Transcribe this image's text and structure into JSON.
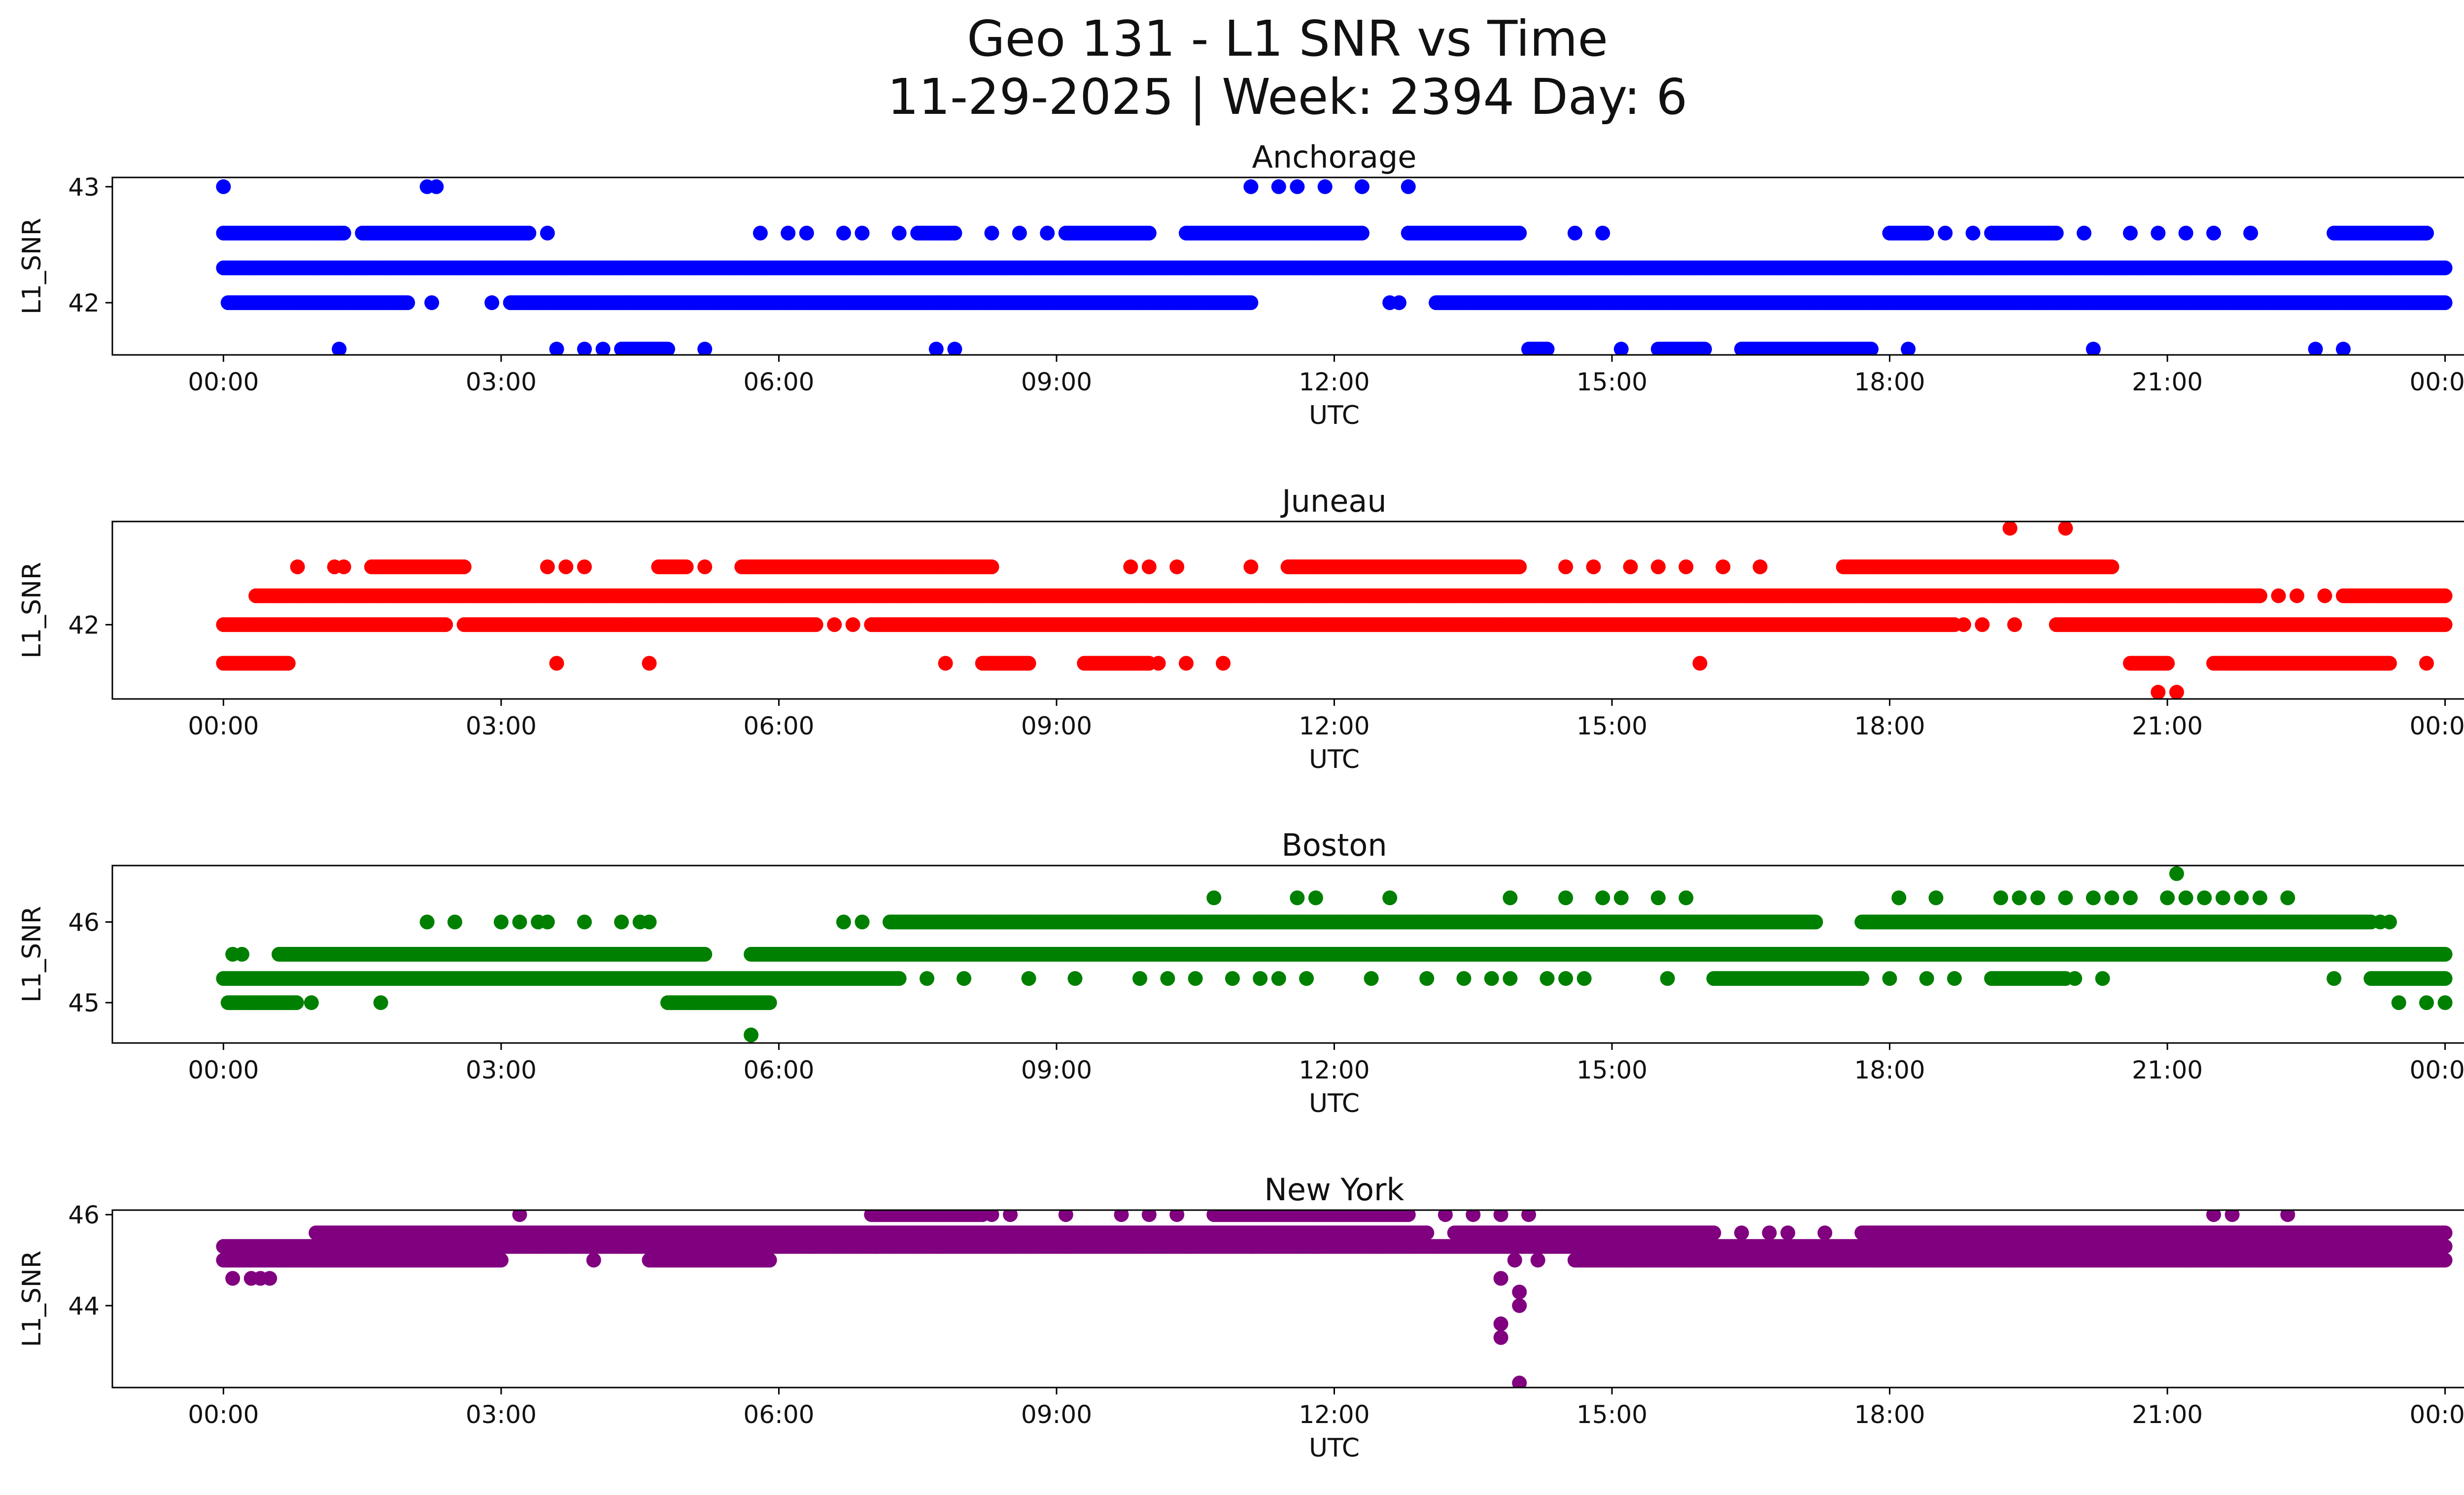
{
  "figure": {
    "title_line1": "Geo 131 - L1 SNR vs Time",
    "title_line2": "11-29-2025 | Week: 2394 Day: 6"
  },
  "chart_data": [
    {
      "type": "scatter",
      "title": "Anchorage",
      "xlabel": "UTC",
      "ylabel": "L1_SNR",
      "color": "#0000ff",
      "x_unit": "hours UTC",
      "xlim": [
        -1.2,
        25.2
      ],
      "ylim": [
        41.55,
        43.08
      ],
      "xticks": [
        0,
        3,
        6,
        9,
        12,
        15,
        18,
        21,
        24
      ],
      "xtick_labels": [
        "00:00",
        "03:00",
        "06:00",
        "09:00",
        "12:00",
        "15:00",
        "18:00",
        "21:00",
        "00:00"
      ],
      "yticks": [
        42,
        43
      ],
      "ytick_labels": [
        "42",
        "43"
      ],
      "grid": false,
      "bands": [
        {
          "y": 42.3,
          "ranges": [
            [
              0.0,
              24.0
            ]
          ]
        },
        {
          "y": 42.0,
          "ranges": [
            [
              0.05,
              2.0
            ],
            [
              3.1,
              11.1
            ],
            [
              13.1,
              24.0
            ]
          ]
        },
        {
          "y": 42.6,
          "ranges": [
            [
              0.0,
              1.3
            ],
            [
              1.5,
              3.3
            ],
            [
              7.5,
              7.9
            ],
            [
              9.1,
              10.0
            ],
            [
              10.4,
              12.3
            ],
            [
              12.8,
              14.0
            ],
            [
              18.0,
              18.4
            ],
            [
              19.1,
              19.8
            ],
            [
              22.8,
              23.8
            ]
          ]
        },
        {
          "y": 41.6,
          "ranges": [
            [
              4.3,
              4.8
            ],
            [
              14.1,
              14.3
            ],
            [
              15.5,
              16.0
            ],
            [
              16.4,
              17.8
            ]
          ]
        }
      ],
      "points": [
        {
          "x": 0.0,
          "y": 43.0
        },
        {
          "x": 2.2,
          "y": 43.0
        },
        {
          "x": 2.3,
          "y": 43.0
        },
        {
          "x": 11.1,
          "y": 43.0
        },
        {
          "x": 11.4,
          "y": 43.0
        },
        {
          "x": 11.6,
          "y": 43.0
        },
        {
          "x": 11.9,
          "y": 43.0
        },
        {
          "x": 12.3,
          "y": 43.0
        },
        {
          "x": 12.8,
          "y": 43.0
        },
        {
          "x": 1.25,
          "y": 41.6
        },
        {
          "x": 3.6,
          "y": 41.6
        },
        {
          "x": 3.9,
          "y": 41.6
        },
        {
          "x": 4.1,
          "y": 41.6
        },
        {
          "x": 5.2,
          "y": 41.6
        },
        {
          "x": 7.7,
          "y": 41.6
        },
        {
          "x": 7.9,
          "y": 41.6
        },
        {
          "x": 15.1,
          "y": 41.6
        },
        {
          "x": 18.2,
          "y": 41.6
        },
        {
          "x": 20.2,
          "y": 41.6
        },
        {
          "x": 22.6,
          "y": 41.6
        },
        {
          "x": 22.9,
          "y": 41.6
        },
        {
          "x": 3.5,
          "y": 42.6
        },
        {
          "x": 5.8,
          "y": 42.6
        },
        {
          "x": 6.1,
          "y": 42.6
        },
        {
          "x": 6.3,
          "y": 42.6
        },
        {
          "x": 6.7,
          "y": 42.6
        },
        {
          "x": 6.9,
          "y": 42.6
        },
        {
          "x": 7.3,
          "y": 42.6
        },
        {
          "x": 8.3,
          "y": 42.6
        },
        {
          "x": 8.6,
          "y": 42.6
        },
        {
          "x": 8.9,
          "y": 42.6
        },
        {
          "x": 14.6,
          "y": 42.6
        },
        {
          "x": 14.9,
          "y": 42.6
        },
        {
          "x": 18.6,
          "y": 42.6
        },
        {
          "x": 18.9,
          "y": 42.6
        },
        {
          "x": 20.1,
          "y": 42.6
        },
        {
          "x": 20.6,
          "y": 42.6
        },
        {
          "x": 20.9,
          "y": 42.6
        },
        {
          "x": 21.2,
          "y": 42.6
        },
        {
          "x": 21.5,
          "y": 42.6
        },
        {
          "x": 21.9,
          "y": 42.6
        },
        {
          "x": 2.9,
          "y": 42.0
        },
        {
          "x": 12.6,
          "y": 42.0
        },
        {
          "x": 12.7,
          "y": 42.0
        },
        {
          "x": 2.25,
          "y": 42.0
        }
      ]
    },
    {
      "type": "scatter",
      "title": "Juneau",
      "xlabel": "UTC",
      "ylabel": "L1_SNR",
      "color": "#ff0000",
      "x_unit": "hours UTC",
      "xlim": [
        -1.2,
        25.2
      ],
      "ylim": [
        41.23,
        43.07
      ],
      "xticks": [
        0,
        3,
        6,
        9,
        12,
        15,
        18,
        21,
        24
      ],
      "xtick_labels": [
        "00:00",
        "03:00",
        "06:00",
        "09:00",
        "12:00",
        "15:00",
        "18:00",
        "21:00",
        "00:00"
      ],
      "yticks": [
        42
      ],
      "ytick_labels": [
        "42"
      ],
      "grid": false,
      "bands": [
        {
          "y": 42.3,
          "ranges": [
            [
              0.35,
              20.6
            ],
            [
              20.6,
              22.0
            ],
            [
              22.9,
              24.0
            ]
          ]
        },
        {
          "y": 42.0,
          "ranges": [
            [
              0.0,
              2.4
            ],
            [
              2.6,
              6.4
            ],
            [
              7.0,
              18.7
            ],
            [
              19.8,
              24.0
            ]
          ]
        },
        {
          "y": 42.6,
          "ranges": [
            [
              1.6,
              2.6
            ],
            [
              4.7,
              5.0
            ],
            [
              5.6,
              8.3
            ],
            [
              11.5,
              14.0
            ],
            [
              17.5,
              20.4
            ]
          ]
        },
        {
          "y": 41.6,
          "ranges": [
            [
              0.0,
              0.7
            ],
            [
              8.2,
              8.7
            ],
            [
              9.3,
              10.0
            ],
            [
              20.6,
              21.0
            ],
            [
              21.5,
              23.4
            ]
          ]
        }
      ],
      "points": [
        {
          "x": 0.8,
          "y": 42.6
        },
        {
          "x": 1.2,
          "y": 42.6
        },
        {
          "x": 1.3,
          "y": 42.6
        },
        {
          "x": 3.5,
          "y": 42.6
        },
        {
          "x": 3.7,
          "y": 42.6
        },
        {
          "x": 3.9,
          "y": 42.6
        },
        {
          "x": 5.2,
          "y": 42.6
        },
        {
          "x": 9.8,
          "y": 42.6
        },
        {
          "x": 10.0,
          "y": 42.6
        },
        {
          "x": 10.3,
          "y": 42.6
        },
        {
          "x": 11.1,
          "y": 42.6
        },
        {
          "x": 14.5,
          "y": 42.6
        },
        {
          "x": 14.8,
          "y": 42.6
        },
        {
          "x": 15.2,
          "y": 42.6
        },
        {
          "x": 15.5,
          "y": 42.6
        },
        {
          "x": 15.8,
          "y": 42.6
        },
        {
          "x": 16.2,
          "y": 42.6
        },
        {
          "x": 16.6,
          "y": 42.6
        },
        {
          "x": 19.3,
          "y": 43.0
        },
        {
          "x": 19.9,
          "y": 43.0
        },
        {
          "x": 3.6,
          "y": 41.6
        },
        {
          "x": 4.6,
          "y": 41.6
        },
        {
          "x": 7.8,
          "y": 41.6
        },
        {
          "x": 10.1,
          "y": 41.6
        },
        {
          "x": 10.4,
          "y": 41.6
        },
        {
          "x": 10.8,
          "y": 41.6
        },
        {
          "x": 15.95,
          "y": 41.6
        },
        {
          "x": 23.8,
          "y": 41.6
        },
        {
          "x": 20.9,
          "y": 41.3
        },
        {
          "x": 21.1,
          "y": 41.3
        },
        {
          "x": 22.2,
          "y": 42.3
        },
        {
          "x": 22.4,
          "y": 42.3
        },
        {
          "x": 22.7,
          "y": 42.3
        },
        {
          "x": 18.8,
          "y": 42.0
        },
        {
          "x": 19.0,
          "y": 42.0
        },
        {
          "x": 19.35,
          "y": 42.0
        },
        {
          "x": 6.6,
          "y": 42.0
        },
        {
          "x": 6.8,
          "y": 42.0
        }
      ]
    },
    {
      "type": "scatter",
      "title": "Boston",
      "xlabel": "UTC",
      "ylabel": "L1_SNR",
      "color": "#008000",
      "x_unit": "hours UTC",
      "xlim": [
        -1.2,
        25.2
      ],
      "ylim": [
        44.5,
        46.7
      ],
      "xticks": [
        0,
        3,
        6,
        9,
        12,
        15,
        18,
        21,
        24
      ],
      "xtick_labels": [
        "00:00",
        "03:00",
        "06:00",
        "09:00",
        "12:00",
        "15:00",
        "18:00",
        "21:00",
        "00:00"
      ],
      "yticks": [
        45,
        46
      ],
      "ytick_labels": [
        "45",
        "46"
      ],
      "grid": false,
      "bands": [
        {
          "y": 45.3,
          "ranges": [
            [
              0.0,
              7.3
            ],
            [
              16.1,
              17.7
            ],
            [
              19.1,
              19.9
            ],
            [
              23.2,
              24.0
            ]
          ]
        },
        {
          "y": 45.6,
          "ranges": [
            [
              0.6,
              5.2
            ],
            [
              5.7,
              24.0
            ]
          ]
        },
        {
          "y": 46.0,
          "ranges": [
            [
              7.2,
              17.2
            ],
            [
              17.7,
              23.2
            ]
          ]
        },
        {
          "y": 45.0,
          "ranges": [
            [
              0.05,
              0.8
            ],
            [
              4.8,
              5.9
            ]
          ]
        }
      ],
      "points": [
        {
          "x": 0.1,
          "y": 45.6
        },
        {
          "x": 0.2,
          "y": 45.6
        },
        {
          "x": 0.95,
          "y": 45.0
        },
        {
          "x": 1.7,
          "y": 45.0
        },
        {
          "x": 23.5,
          "y": 45.0
        },
        {
          "x": 23.8,
          "y": 45.0
        },
        {
          "x": 24.0,
          "y": 45.0
        },
        {
          "x": 5.7,
          "y": 44.6
        },
        {
          "x": 2.2,
          "y": 46.0
        },
        {
          "x": 2.5,
          "y": 46.0
        },
        {
          "x": 3.0,
          "y": 46.0
        },
        {
          "x": 3.2,
          "y": 46.0
        },
        {
          "x": 3.4,
          "y": 46.0
        },
        {
          "x": 3.5,
          "y": 46.0
        },
        {
          "x": 3.9,
          "y": 46.0
        },
        {
          "x": 4.3,
          "y": 46.0
        },
        {
          "x": 4.5,
          "y": 46.0
        },
        {
          "x": 4.6,
          "y": 46.0
        },
        {
          "x": 6.7,
          "y": 46.0
        },
        {
          "x": 6.9,
          "y": 46.0
        },
        {
          "x": 10.7,
          "y": 46.3
        },
        {
          "x": 11.6,
          "y": 46.3
        },
        {
          "x": 11.8,
          "y": 46.3
        },
        {
          "x": 12.6,
          "y": 46.3
        },
        {
          "x": 13.9,
          "y": 46.3
        },
        {
          "x": 14.5,
          "y": 46.3
        },
        {
          "x": 14.9,
          "y": 46.3
        },
        {
          "x": 15.1,
          "y": 46.3
        },
        {
          "x": 15.5,
          "y": 46.3
        },
        {
          "x": 15.8,
          "y": 46.3
        },
        {
          "x": 18.1,
          "y": 46.3
        },
        {
          "x": 18.5,
          "y": 46.3
        },
        {
          "x": 19.2,
          "y": 46.3
        },
        {
          "x": 19.4,
          "y": 46.3
        },
        {
          "x": 19.6,
          "y": 46.3
        },
        {
          "x": 19.9,
          "y": 46.3
        },
        {
          "x": 20.2,
          "y": 46.3
        },
        {
          "x": 20.4,
          "y": 46.3
        },
        {
          "x": 20.6,
          "y": 46.3
        },
        {
          "x": 21.0,
          "y": 46.3
        },
        {
          "x": 21.2,
          "y": 46.3
        },
        {
          "x": 21.4,
          "y": 46.3
        },
        {
          "x": 21.6,
          "y": 46.3
        },
        {
          "x": 21.8,
          "y": 46.3
        },
        {
          "x": 22.0,
          "y": 46.3
        },
        {
          "x": 22.3,
          "y": 46.3
        },
        {
          "x": 21.1,
          "y": 46.6
        },
        {
          "x": 7.6,
          "y": 45.3
        },
        {
          "x": 8.0,
          "y": 45.3
        },
        {
          "x": 8.7,
          "y": 45.3
        },
        {
          "x": 9.2,
          "y": 45.3
        },
        {
          "x": 9.9,
          "y": 45.3
        },
        {
          "x": 10.2,
          "y": 45.3
        },
        {
          "x": 10.5,
          "y": 45.3
        },
        {
          "x": 10.9,
          "y": 45.3
        },
        {
          "x": 11.2,
          "y": 45.3
        },
        {
          "x": 11.4,
          "y": 45.3
        },
        {
          "x": 11.7,
          "y": 45.3
        },
        {
          "x": 12.4,
          "y": 45.3
        },
        {
          "x": 13.0,
          "y": 45.3
        },
        {
          "x": 13.4,
          "y": 45.3
        },
        {
          "x": 13.7,
          "y": 45.3
        },
        {
          "x": 13.9,
          "y": 45.3
        },
        {
          "x": 14.3,
          "y": 45.3
        },
        {
          "x": 14.5,
          "y": 45.3
        },
        {
          "x": 14.7,
          "y": 45.3
        },
        {
          "x": 15.6,
          "y": 45.3
        },
        {
          "x": 18.0,
          "y": 45.3
        },
        {
          "x": 18.4,
          "y": 45.3
        },
        {
          "x": 18.7,
          "y": 45.3
        },
        {
          "x": 20.0,
          "y": 45.3
        },
        {
          "x": 20.3,
          "y": 45.3
        },
        {
          "x": 22.8,
          "y": 45.3
        },
        {
          "x": 23.3,
          "y": 46.0
        },
        {
          "x": 23.4,
          "y": 46.0
        }
      ]
    },
    {
      "type": "scatter",
      "title": "New York",
      "xlabel": "UTC",
      "ylabel": "L1_SNR",
      "color": "#800080",
      "x_unit": "hours UTC",
      "xlim": [
        -1.2,
        25.2
      ],
      "ylim": [
        42.2,
        46.1
      ],
      "xticks": [
        0,
        3,
        6,
        9,
        12,
        15,
        18,
        21,
        24
      ],
      "xtick_labels": [
        "00:00",
        "03:00",
        "06:00",
        "09:00",
        "12:00",
        "15:00",
        "18:00",
        "21:00",
        "00:00"
      ],
      "yticks": [
        44,
        46
      ],
      "ytick_labels": [
        "44",
        "46"
      ],
      "grid": false,
      "bands": [
        {
          "y": 45.0,
          "ranges": [
            [
              0.0,
              3.0
            ],
            [
              4.6,
              5.9
            ],
            [
              14.6,
              24.0
            ]
          ]
        },
        {
          "y": 45.3,
          "ranges": [
            [
              0.0,
              24.0
            ]
          ]
        },
        {
          "y": 45.6,
          "ranges": [
            [
              1.0,
              13.0
            ],
            [
              13.3,
              16.1
            ],
            [
              17.7,
              24.0
            ]
          ]
        },
        {
          "y": 46.0,
          "ranges": [
            [
              7.0,
              8.2
            ],
            [
              10.7,
              12.8
            ]
          ]
        }
      ],
      "points": [
        {
          "x": 0.1,
          "y": 44.6
        },
        {
          "x": 0.3,
          "y": 44.6
        },
        {
          "x": 0.5,
          "y": 44.6
        },
        {
          "x": 0.4,
          "y": 44.6
        },
        {
          "x": 3.2,
          "y": 46.0
        },
        {
          "x": 8.3,
          "y": 46.0
        },
        {
          "x": 8.5,
          "y": 46.0
        },
        {
          "x": 9.1,
          "y": 46.0
        },
        {
          "x": 9.7,
          "y": 46.0
        },
        {
          "x": 10.0,
          "y": 46.0
        },
        {
          "x": 10.3,
          "y": 46.0
        },
        {
          "x": 13.2,
          "y": 46.0
        },
        {
          "x": 13.5,
          "y": 46.0
        },
        {
          "x": 13.8,
          "y": 46.0
        },
        {
          "x": 14.1,
          "y": 46.0
        },
        {
          "x": 21.5,
          "y": 46.0
        },
        {
          "x": 21.7,
          "y": 46.0
        },
        {
          "x": 22.3,
          "y": 46.0
        },
        {
          "x": 4.0,
          "y": 45.0
        },
        {
          "x": 13.8,
          "y": 44.6
        },
        {
          "x": 13.8,
          "y": 43.6
        },
        {
          "x": 13.8,
          "y": 43.3
        },
        {
          "x": 14.0,
          "y": 44.3
        },
        {
          "x": 14.0,
          "y": 44.0
        },
        {
          "x": 14.0,
          "y": 42.3
        },
        {
          "x": 13.95,
          "y": 45.0
        },
        {
          "x": 14.2,
          "y": 45.0
        },
        {
          "x": 16.4,
          "y": 45.6
        },
        {
          "x": 16.7,
          "y": 45.6
        },
        {
          "x": 16.9,
          "y": 45.6
        },
        {
          "x": 17.3,
          "y": 45.6
        }
      ]
    }
  ]
}
